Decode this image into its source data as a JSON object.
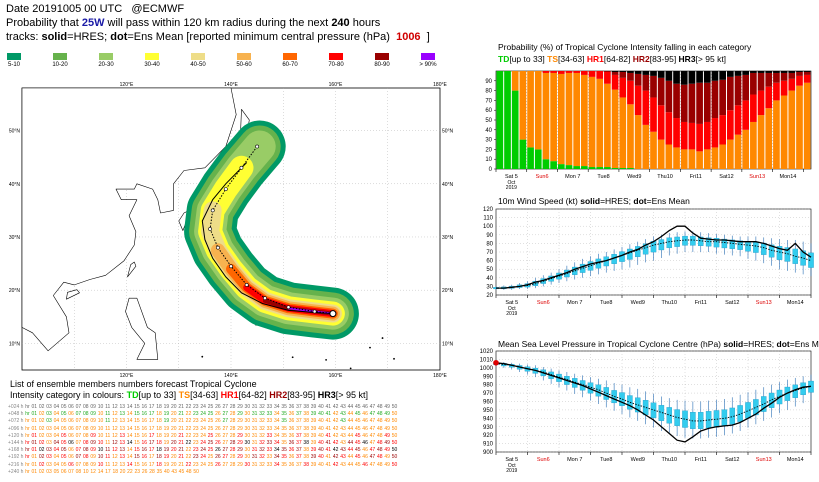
{
  "header": {
    "line1_a": "Date 20191005 00 UTC",
    "line1_b": "@ECMWF",
    "line2_a": "Probability that",
    "storm": "25W",
    "line2_b": "will pass within 120 km radius during the next",
    "hours": "240",
    "line2_c": "hours",
    "line3_a": "tracks:",
    "solid": "solid",
    "line3_b": "=HRES;",
    "dot": "dot",
    "line3_c": "=Ens Mean [reported minimum central pressure (hPa)",
    "pressure": "1006",
    "line3_d": "]"
  },
  "legend": [
    {
      "label": "5-10",
      "color": "#009966"
    },
    {
      "label": "10-20",
      "color": "#66b24c"
    },
    {
      "label": "20-30",
      "color": "#99cc66"
    },
    {
      "label": "30-40",
      "color": "#ffff33"
    },
    {
      "label": "40-50",
      "color": "#eedd88"
    },
    {
      "label": "50-60",
      "color": "#f7b24f"
    },
    {
      "label": "60-70",
      "color": "#ff6600"
    },
    {
      "label": "70-80",
      "color": "#ff0000"
    },
    {
      "label": "80-90",
      "color": "#990000"
    },
    {
      "label": "> 90%",
      "color": "#9900ff"
    }
  ],
  "map": {
    "lon_labels": [
      "120°E",
      "140°E",
      "160°E",
      "180°E"
    ],
    "lat_labels": [
      "50°N",
      "40°N",
      "30°N",
      "20°N",
      "10°N"
    ],
    "track_hres": [
      [
        159.5,
        15.6
      ],
      [
        156,
        15.8
      ],
      [
        151,
        16.2
      ],
      [
        146,
        17.5
      ],
      [
        142,
        19.5
      ],
      [
        139,
        22.5
      ],
      [
        136.5,
        26
      ],
      [
        135,
        29.5
      ],
      [
        134.5,
        33
      ],
      [
        136.5,
        37
      ],
      [
        139,
        40
      ],
      [
        143,
        44
      ]
    ],
    "track_mean": [
      [
        159.5,
        15.6
      ],
      [
        156,
        16
      ],
      [
        151,
        16.8
      ],
      [
        146.5,
        18.5
      ],
      [
        143,
        21
      ],
      [
        140,
        24.5
      ],
      [
        137.5,
        28
      ],
      [
        136,
        31.5
      ],
      [
        136.5,
        35
      ],
      [
        139,
        39
      ],
      [
        142,
        43
      ],
      [
        145,
        47
      ]
    ]
  },
  "chart_data": [
    {
      "type": "bar",
      "title": "Probability (%) of Tropical Cyclone Intensity falling in each category",
      "categories_legend": [
        {
          "code": "TD",
          "range": "[up to 33]",
          "color": "#00cc00"
        },
        {
          "code": "TS",
          "range": "[34-63]",
          "color": "#ff8800"
        },
        {
          "code": "HR1",
          "range": "[64-82]",
          "color": "#ff0000"
        },
        {
          "code": "HR2",
          "range": "[83-95]",
          "color": "#990000"
        },
        {
          "code": "HR3",
          "range": "[> 95 kt]",
          "color": "#000000"
        }
      ],
      "ylim": [
        0,
        100
      ],
      "yticks": [
        0,
        10,
        20,
        30,
        40,
        50,
        60,
        70,
        80,
        90
      ],
      "days": [
        "Sat 5",
        "Sun6",
        "Mon 7",
        "Tue8",
        "Wed9",
        "Thu10",
        "Fri11",
        "Sat12",
        "Sun13",
        "Mon14"
      ],
      "day_colors": [
        "#000000",
        "#dd0000",
        "#000000",
        "#000000",
        "#000000",
        "#000000",
        "#000000",
        "#000000",
        "#dd0000",
        "#000000"
      ],
      "start_label": [
        "Oct",
        "2019"
      ],
      "steps_per_day": 4,
      "series": [
        {
          "name": "TD",
          "values": [
            100,
            100,
            80,
            30,
            22,
            20,
            10,
            8,
            5,
            4,
            3,
            3,
            2,
            2,
            2,
            1,
            1,
            1,
            0,
            0,
            0,
            0,
            0,
            0,
            0,
            0,
            0,
            0,
            0,
            0,
            0,
            0,
            0,
            0,
            0,
            0,
            0,
            0,
            0,
            0,
            0
          ]
        },
        {
          "name": "TS",
          "values": [
            0,
            0,
            20,
            70,
            78,
            80,
            88,
            90,
            92,
            94,
            95,
            93,
            92,
            90,
            85,
            80,
            72,
            65,
            55,
            45,
            38,
            30,
            25,
            22,
            20,
            20,
            18,
            20,
            22,
            25,
            30,
            35,
            40,
            48,
            55,
            62,
            70,
            75,
            80,
            85,
            88
          ]
        },
        {
          "name": "HR1",
          "values": [
            0,
            0,
            0,
            0,
            0,
            0,
            2,
            2,
            3,
            2,
            2,
            4,
            6,
            8,
            12,
            15,
            20,
            24,
            30,
            35,
            35,
            35,
            33,
            30,
            28,
            27,
            28,
            28,
            30,
            30,
            30,
            30,
            30,
            28,
            25,
            22,
            18,
            15,
            12,
            10,
            8
          ]
        },
        {
          "name": "HR2",
          "values": [
            0,
            0,
            0,
            0,
            0,
            0,
            0,
            0,
            0,
            0,
            0,
            0,
            0,
            0,
            1,
            3,
            6,
            8,
            12,
            16,
            22,
            28,
            32,
            35,
            38,
            40,
            42,
            40,
            38,
            36,
            34,
            30,
            26,
            22,
            18,
            14,
            10,
            8,
            6,
            4,
            3
          ]
        },
        {
          "name": "HR3",
          "values": [
            0,
            0,
            0,
            0,
            0,
            0,
            0,
            0,
            0,
            0,
            0,
            0,
            0,
            0,
            0,
            1,
            1,
            2,
            3,
            4,
            5,
            7,
            10,
            13,
            14,
            13,
            12,
            12,
            10,
            9,
            6,
            5,
            4,
            2,
            2,
            2,
            2,
            2,
            2,
            1,
            1
          ]
        }
      ]
    },
    {
      "type": "line",
      "title_a": "10m Wind Speed (kt)",
      "solid": "solid",
      "title_b": "=HRES;",
      "dot": "dot",
      "title_c": "=Ens Mean",
      "ylim": [
        20,
        120
      ],
      "yticks": [
        20,
        30,
        40,
        50,
        60,
        70,
        80,
        90,
        100,
        110,
        120
      ],
      "days": [
        "Sat 5",
        "Sun6",
        "Mon 7",
        "Tue8",
        "Wed9",
        "Thu10",
        "Fri11",
        "Sat12",
        "Sun13",
        "Mon14"
      ],
      "start_label": [
        "Oct",
        "2019"
      ],
      "steps_per_day": 4,
      "hres": [
        28,
        28,
        29,
        30,
        32,
        35,
        37,
        40,
        43,
        46,
        50,
        53,
        56,
        58,
        60,
        63,
        66,
        70,
        73,
        78,
        82,
        88,
        95,
        100,
        100,
        92,
        86,
        85,
        84,
        84,
        83,
        82,
        82,
        82,
        80,
        77,
        74,
        72,
        80,
        70,
        64
      ],
      "mean": [
        28,
        28,
        29,
        30,
        31,
        33,
        36,
        39,
        42,
        45,
        48,
        51,
        54,
        57,
        60,
        63,
        66,
        69,
        72,
        75,
        78,
        80,
        82,
        83,
        84,
        84,
        83,
        82,
        82,
        81,
        80,
        79,
        78,
        77,
        75,
        72,
        70,
        68,
        65,
        63,
        60
      ],
      "min": [
        26,
        26,
        26,
        27,
        27,
        28,
        30,
        32,
        34,
        36,
        38,
        40,
        42,
        44,
        46,
        48,
        50,
        52,
        55,
        58,
        60,
        63,
        66,
        68,
        70,
        70,
        70,
        70,
        68,
        67,
        66,
        65,
        62,
        60,
        57,
        54,
        50,
        48,
        46,
        44,
        42
      ],
      "max": [
        30,
        31,
        32,
        34,
        36,
        40,
        43,
        46,
        50,
        54,
        58,
        62,
        65,
        68,
        70,
        73,
        76,
        79,
        82,
        85,
        88,
        90,
        92,
        93,
        94,
        94,
        93,
        92,
        91,
        90,
        89,
        88,
        88,
        88,
        87,
        86,
        85,
        84,
        84,
        82,
        80
      ]
    },
    {
      "type": "line",
      "title_a": "Mean Sea Level Pressure in Tropical Cyclone Centre (hPa)",
      "solid": "solid",
      "title_b": "=HRES;",
      "dot": "dot",
      "title_c": "=Ens Mean",
      "ylim": [
        900,
        1020
      ],
      "yticks": [
        900,
        910,
        920,
        930,
        940,
        950,
        960,
        970,
        980,
        990,
        1000,
        1010,
        1020
      ],
      "days": [
        "Sat 5",
        "Sun6",
        "Mon 7",
        "Tue8",
        "Wed9",
        "Thu10",
        "Fri11",
        "Sat12",
        "Sun13",
        "Mon14"
      ],
      "start_label": [
        "Oct",
        "2019"
      ],
      "steps_per_day": 4,
      "observed": 1006,
      "hres": [
        1006,
        1005,
        1003,
        1001,
        999,
        997,
        994,
        991,
        988,
        985,
        982,
        979,
        975,
        971,
        967,
        963,
        959,
        955,
        950,
        944,
        938,
        930,
        922,
        914,
        912,
        918,
        925,
        928,
        930,
        931,
        932,
        935,
        940,
        945,
        952,
        958,
        965,
        970,
        974,
        977,
        978
      ],
      "mean": [
        1005,
        1004,
        1003,
        1001,
        999,
        997,
        995,
        992,
        989,
        986,
        983,
        980,
        977,
        974,
        970,
        966,
        963,
        959,
        956,
        953,
        950,
        947,
        944,
        941,
        939,
        937,
        937,
        938,
        939,
        940,
        942,
        945,
        949,
        953,
        957,
        962,
        966,
        970,
        973,
        976,
        978
      ],
      "min": [
        1002,
        1000,
        998,
        995,
        992,
        989,
        985,
        981,
        977,
        973,
        969,
        965,
        961,
        957,
        953,
        949,
        945,
        941,
        937,
        933,
        929,
        925,
        922,
        919,
        917,
        916,
        916,
        917,
        918,
        920,
        922,
        925,
        929,
        933,
        937,
        941,
        946,
        950,
        954,
        958,
        962
      ],
      "max": [
        1007,
        1007,
        1006,
        1005,
        1004,
        1003,
        1001,
        999,
        997,
        995,
        993,
        991,
        989,
        987,
        985,
        982,
        980,
        977,
        975,
        972,
        969,
        966,
        964,
        962,
        961,
        960,
        960,
        961,
        962,
        963,
        965,
        968,
        971,
        974,
        977,
        980,
        983,
        986,
        988,
        990,
        992
      ]
    }
  ],
  "ensemble": {
    "title": "List of ensemble members numbers forecast Tropical Cyclone",
    "intensity_label": "Intensity category in colours:",
    "rows": [
      {
        "label": "+024 h",
        "nums": "hr 01 02 03 04 05 06 07 08 09 10 11 12 13 14 15 16 17 18 19 20 21 22 23 24 25 26 27 28 29 30 31 32 33 34 35 36 37 38 39 40 41 42 43 44 45 46 47 48 49 50"
      },
      {
        "label": "+048 h",
        "nums": "hr 01 02 03 04 05 06 07 08 09 10 11 12 13 14 15 16 17 18 19 20 21 22 23 24 25 26 27 28 29 30 31 32 33 34 35 36 37 38 39 40 41 42 43 44 45 46 47 48 49 50"
      },
      {
        "label": "+072 h",
        "nums": "hr 01 02 03 04 05 06 07 08 09 10 11 12 13 14 15 16 17 18 19 20 21 22 23 24 25 26 27 28 29 30 31 32 33 34 35 36 37 38 39 40 41 42 43 44 45 46 47 48 49 50"
      },
      {
        "label": "+096 h",
        "nums": "hr 01 02 03 04 05 06 07 08 09 10 11 12 13 14 15 16 17 18 19 20 21 22 23 24 25 26 27 28 29 30 31 32 33 34 35 36 37 38 39 40 41 42 43 44 45 46 47 48 49 50"
      },
      {
        "label": "+120 h",
        "nums": "hr 01 02 03 04 05 06 07 08 09 10 11 12 13 14 15 16 17 18 19 20 21 22 23 24 25 26 27 28 29 30 31 32 33 34 35 36 37 38 39 40 41 42 43 44 45 46 47 48 49 50"
      },
      {
        "label": "+144 h",
        "nums": "hr 01 02 03 04 05 06 07 08 09 10 11 12 13 14 15 16 17 18 19 20 21 22 23 24 25 26 27 28 29 30 31 32 33 34 35 36 37 38 39 40 41 42 43 44 45 46 47 48 49 50"
      },
      {
        "label": "+168 h",
        "nums": "hr 01 02 03 04 05 06 07 08 09 10 11 12 13 14 15 16 17 18 19 20 21 22 23 24 25 26 27 28 29 30 31 32 33 34 35 36 37 38 39 40 41 42 43 44 45 46 47 48 49 50"
      },
      {
        "label": "+192 h",
        "nums": "hr 01 02 03 04 05 06 07 08 09 10 11 12 13 14 15 16 17 18 19 20 21 22 23 24 25 26 27 28 29 30 31 32 33 34 35 36 37 38 39 40 41 42 43 44 45 46 47 48 49 50"
      },
      {
        "label": "+216 h",
        "nums": "hr 01 02 03 04 05 06 07 08 09 10 11 12 13 14 15 16 17 18 19 20 21 22 23 24 25 26 27 28 29 30 31 32 33 34 35 36 37 38 39 40 41 42 43 44 45 46 47 48 49 50"
      },
      {
        "label": "+240 h",
        "nums": "hr 01 02 03 05 06 07 08 10 12 14 17 18 20 22 23 26 28 35 40 43 45 48 50"
      }
    ]
  }
}
